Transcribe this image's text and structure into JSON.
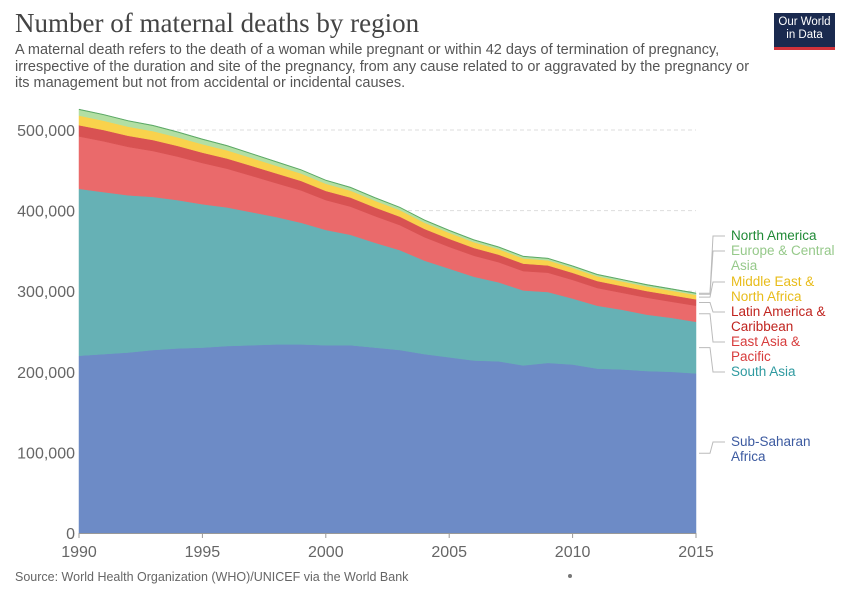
{
  "header": {
    "title": "Number of maternal deaths by region",
    "subtitle": "A maternal death refers to the death of a woman while pregnant or within 42 days of termination of pregnancy, irrespective of the duration and site of the pregnancy, from any cause related to or aggravated by the pregnancy or its management but not from accidental or incidental causes.",
    "logo_line1": "Our World",
    "logo_line2": "in Data"
  },
  "footer": {
    "source": "Source: World Health Organization (WHO)/UNICEF via the World Bank"
  },
  "colors": {
    "accent": "#d1323a",
    "logo_bg": "#1a2a4f"
  },
  "chart_data": {
    "type": "area",
    "stacked": true,
    "x": [
      1990,
      1991,
      1992,
      1993,
      1994,
      1995,
      1996,
      1997,
      1998,
      1999,
      2000,
      2001,
      2002,
      2003,
      2004,
      2005,
      2006,
      2007,
      2008,
      2009,
      2010,
      2011,
      2012,
      2013,
      2014,
      2015
    ],
    "ylim": [
      0,
      500000
    ],
    "yticks": [
      0,
      100000,
      200000,
      300000,
      400000,
      500000
    ],
    "ytick_labels": [
      "0",
      "100,000",
      "200,000",
      "300,000",
      "400,000",
      "500,000"
    ],
    "xticks": [
      1990,
      1995,
      2000,
      2005,
      2010,
      2015
    ],
    "grid": "horizontal dashed",
    "legend": "right, labels at series ends",
    "series": [
      {
        "name": "Sub-Saharan Africa",
        "color": "#6d8bc6",
        "label_color": "#3c5aa0",
        "values": [
          220000,
          222000,
          224000,
          227000,
          229000,
          230000,
          232000,
          233000,
          234000,
          234000,
          233000,
          233000,
          230000,
          227000,
          222000,
          218000,
          214000,
          213000,
          208000,
          211000,
          209000,
          204000,
          203000,
          201000,
          200000,
          198000
        ]
      },
      {
        "name": "South Asia",
        "color": "#66b1b5",
        "label_color": "#2f9aa0",
        "values": [
          207000,
          201000,
          195000,
          190000,
          184000,
          178000,
          172000,
          165000,
          158000,
          151000,
          143000,
          137000,
          130000,
          124000,
          116000,
          110000,
          104000,
          98000,
          93000,
          88000,
          82000,
          78000,
          74000,
          70000,
          67000,
          64000
        ]
      },
      {
        "name": "East Asia & Pacific",
        "color": "#ea6a6b",
        "label_color": "#d73c3c",
        "values": [
          65000,
          63000,
          60000,
          57000,
          54000,
          51000,
          48000,
          45000,
          42000,
          40000,
          37000,
          35000,
          33000,
          31000,
          29000,
          27000,
          26000,
          25000,
          24000,
          24000,
          23000,
          22000,
          21000,
          21000,
          20000,
          20000
        ]
      },
      {
        "name": "Latin America & Caribbean",
        "color": "#d85252",
        "label_color": "#c0241f",
        "values": [
          14000,
          14000,
          13800,
          13600,
          13300,
          13000,
          12700,
          12400,
          12100,
          11800,
          11500,
          11200,
          10900,
          10600,
          10300,
          10000,
          9700,
          9400,
          9200,
          9000,
          8800,
          8600,
          8500,
          8300,
          8200,
          8000
        ]
      },
      {
        "name": "Middle East & North Africa",
        "color": "#f9d24c",
        "label_color": "#e8bc1a",
        "values": [
          12000,
          11600,
          11300,
          11000,
          10700,
          10400,
          10100,
          9800,
          9500,
          9200,
          8900,
          8600,
          8300,
          8000,
          7700,
          7400,
          7100,
          6800,
          6500,
          6300,
          6100,
          5900,
          5700,
          5600,
          5500,
          5400
        ]
      },
      {
        "name": "Europe & Central Asia",
        "color": "#b2dfa3",
        "label_color": "#96c98a",
        "values": [
          7200,
          7100,
          6900,
          6600,
          6200,
          5800,
          5400,
          5000,
          4600,
          4200,
          3900,
          3600,
          3300,
          3100,
          2900,
          2700,
          2500,
          2300,
          2200,
          2100,
          2000,
          1900,
          1900,
          1800,
          1800,
          1800
        ]
      },
      {
        "name": "North America",
        "color": "#5aa864",
        "label_color": "#208a36",
        "values": [
          700,
          700,
          700,
          700,
          700,
          700,
          700,
          700,
          700,
          700,
          700,
          700,
          700,
          700,
          700,
          700,
          700,
          700,
          700,
          700,
          700,
          700,
          700,
          700,
          700,
          700
        ]
      }
    ],
    "legend_labels": [
      {
        "series": "North America",
        "lines": [
          "North America"
        ]
      },
      {
        "series": "Europe & Central Asia",
        "lines": [
          "Europe & Central",
          "Asia"
        ]
      },
      {
        "series": "Middle East & North Africa",
        "lines": [
          "Middle East &",
          "North Africa"
        ]
      },
      {
        "series": "Latin America & Caribbean",
        "lines": [
          "Latin America &",
          "Caribbean"
        ]
      },
      {
        "series": "East Asia & Pacific",
        "lines": [
          "East Asia &",
          "Pacific"
        ]
      },
      {
        "series": "South Asia",
        "lines": [
          "South Asia"
        ]
      },
      {
        "series": "Sub-Saharan Africa",
        "lines": [
          "Sub-Saharan",
          "Africa"
        ]
      }
    ]
  }
}
